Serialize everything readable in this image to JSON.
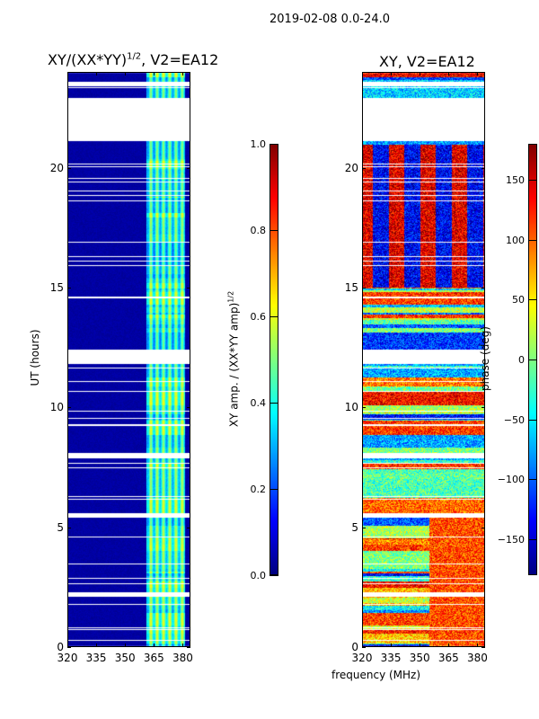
{
  "suptitle": "2019-02-08 0.0-24.0",
  "chart_data": [
    {
      "type": "heatmap",
      "title": "XY/(XX*YY)^1/2, V2=EA12",
      "title_main": "XY/(XX*YY)",
      "title_sup": "1/2",
      "title_tail": ", V2=EA12",
      "xlabel": "frequency (MHz)",
      "ylabel": "UT (hours)",
      "xlim": [
        320,
        384
      ],
      "ylim": [
        0,
        24
      ],
      "xticks": [
        320,
        335,
        350,
        365,
        380
      ],
      "yticks": [
        0,
        5,
        10,
        15,
        20
      ],
      "colormap": "jet",
      "colorbar": {
        "label_main": "XY amp. / (XX*YY amp)",
        "label_sup": "1/2",
        "range": [
          0,
          1
        ],
        "ticks": [
          "0.0",
          "0.2",
          "0.4",
          "0.6",
          "0.8",
          "1.0"
        ],
        "values": [
          0,
          0.2,
          0.4,
          0.6,
          0.8,
          1.0
        ]
      },
      "flagged_hours": [
        [
          21.1,
          22.9
        ],
        [
          23.4,
          23.6
        ],
        [
          11.8,
          12.4
        ],
        [
          7.9,
          8.1
        ],
        [
          5.4,
          5.6
        ],
        [
          2.1,
          2.3
        ]
      ],
      "bright_band_mhz": [
        361,
        381
      ]
    },
    {
      "type": "heatmap",
      "title": "XY, V2=EA12",
      "xlim": [
        320,
        384
      ],
      "ylim": [
        0,
        24
      ],
      "xticks": [
        320,
        335,
        350,
        365,
        380
      ],
      "yticks": [
        0,
        5,
        10,
        15,
        20
      ],
      "colormap": "jet",
      "colorbar": {
        "label": "phase (deg)",
        "range": [
          -180,
          180
        ],
        "ticks": [
          "−150",
          "−100",
          "−50",
          "0",
          "50",
          "100",
          "150"
        ],
        "values": [
          -150,
          -100,
          -50,
          0,
          50,
          100,
          150
        ]
      },
      "flagged_hours": [
        [
          21.1,
          22.9
        ],
        [
          11.8,
          12.4
        ],
        [
          7.9,
          8.1
        ],
        [
          5.4,
          5.6
        ],
        [
          2.1,
          2.3
        ]
      ]
    }
  ]
}
